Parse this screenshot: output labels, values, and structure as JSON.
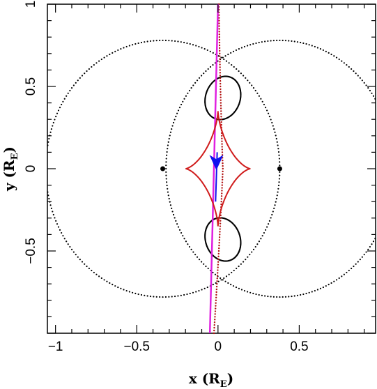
{
  "chart_data": {
    "type": "scatter",
    "title": "",
    "xlabel": "x (R",
    "xlabel_sub": "E",
    "xlabel_close": ")",
    "ylabel": "y (R",
    "ylabel_sub": "E",
    "ylabel_close": ")",
    "xlim": [
      -1.05,
      0.97
    ],
    "ylim": [
      -1.0,
      1.0
    ],
    "xticks": [
      {
        "value": -1,
        "label": "−1"
      },
      {
        "value": -0.5,
        "label": "−0.5"
      },
      {
        "value": 0,
        "label": "0"
      },
      {
        "value": 0.5,
        "label": "0.5"
      }
    ],
    "yticks": [
      {
        "value": 1,
        "label": "1"
      },
      {
        "value": 0.5,
        "label": "0.5"
      },
      {
        "value": 0,
        "label": "0"
      },
      {
        "value": -0.5,
        "label": "−0.5"
      }
    ],
    "grid": false,
    "colors": {
      "critical_curve": "#000000",
      "caustic": "#d01c1c",
      "source_trajectory": "#e020e0",
      "image_track": "#b01010",
      "arrow": "#1010ee"
    },
    "lenses": [
      {
        "x": -0.34,
        "y": 0.0
      },
      {
        "x": 0.38,
        "y": 0.0
      }
    ],
    "caustic": {
      "center_x": 0.0,
      "center_y": 0.0,
      "half_width": 0.2,
      "half_height": 0.35
    },
    "source_trajectory": {
      "x": [
        -0.05,
        0.0
      ],
      "y": [
        -1.0,
        1.0
      ]
    },
    "image_track": {
      "x": [
        -0.03,
        0.0
      ],
      "y": [
        -1.0,
        1.0
      ]
    },
    "arrow": {
      "x": -0.01,
      "y": 0.05,
      "direction": "down"
    }
  }
}
